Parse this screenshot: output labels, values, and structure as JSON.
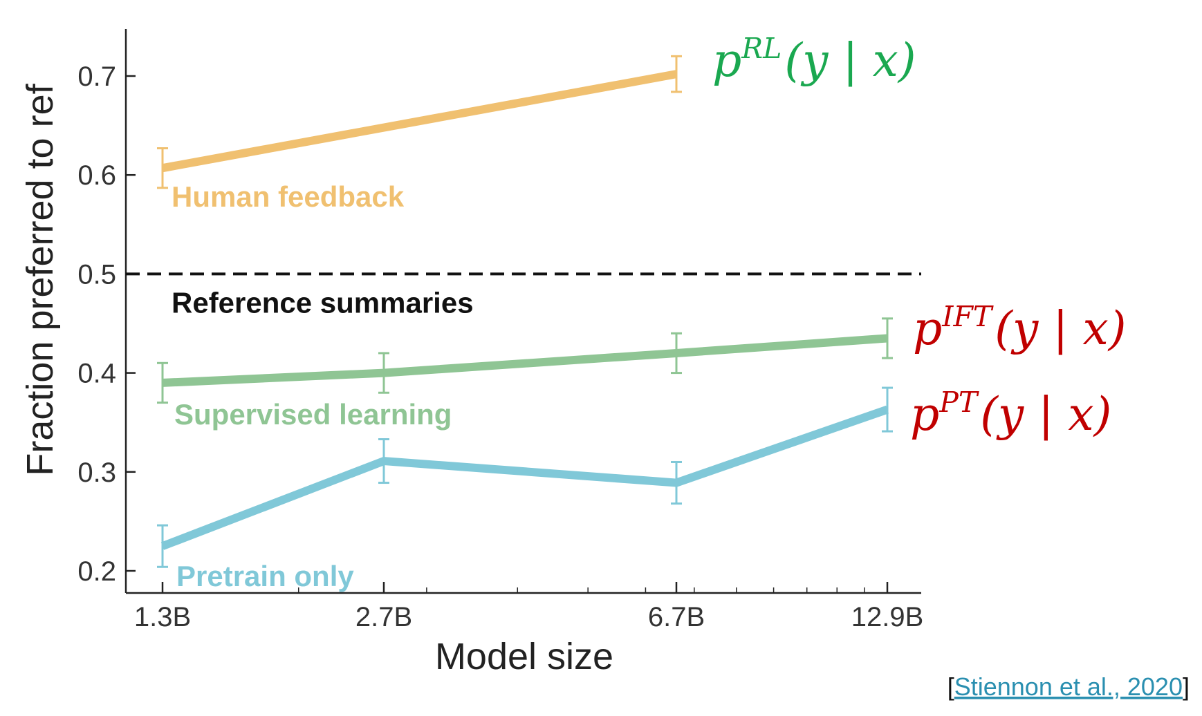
{
  "chart_data": {
    "type": "line",
    "title": "",
    "xlabel": "Model size",
    "ylabel": "Fraction preferred to ref",
    "categories": [
      "1.3B",
      "2.7B",
      "6.7B",
      "12.9B"
    ],
    "x_scale": "log",
    "x_values": [
      1.3,
      2.7,
      6.7,
      12.9
    ],
    "ylim": [
      0.18,
      0.75
    ],
    "yticks": [
      0.2,
      0.3,
      0.4,
      0.5,
      0.6,
      0.7
    ],
    "ytick_labels": [
      "0.2",
      "0.3",
      "0.4",
      "0.5",
      "0.6",
      "0.7"
    ],
    "reference_line": {
      "y": 0.5,
      "label": "Reference summaries",
      "color": "#111111",
      "style": "dashed"
    },
    "series": [
      {
        "name": "Human feedback",
        "color": "#f0c070",
        "values": [
          0.607,
          null,
          0.702,
          null
        ],
        "errors": [
          0.02,
          null,
          0.018,
          null
        ],
        "formula": {
          "base": "p",
          "sup": "RL",
          "rest": "(y | x)",
          "color": "#1aa850"
        }
      },
      {
        "name": "Supervised learning",
        "color": "#8fc594",
        "values": [
          0.39,
          0.4,
          0.42,
          0.435
        ],
        "errors": [
          0.02,
          0.02,
          0.02,
          0.02
        ],
        "formula": {
          "base": "p",
          "sup": "IFT",
          "rest": "(y | x)",
          "color": "#c00000"
        }
      },
      {
        "name": "Pretrain only",
        "color": "#80c8d8",
        "values": [
          0.225,
          0.311,
          0.289,
          0.363
        ],
        "errors": [
          0.021,
          0.022,
          0.021,
          0.022
        ],
        "formula": {
          "base": "p",
          "sup": "PT",
          "rest": "(y | x)",
          "color": "#c00000"
        }
      }
    ],
    "grid": false,
    "legend": "inline labels"
  },
  "citation": {
    "open": "[",
    "text": "Stiennon et al., 2020",
    "close": "]"
  }
}
